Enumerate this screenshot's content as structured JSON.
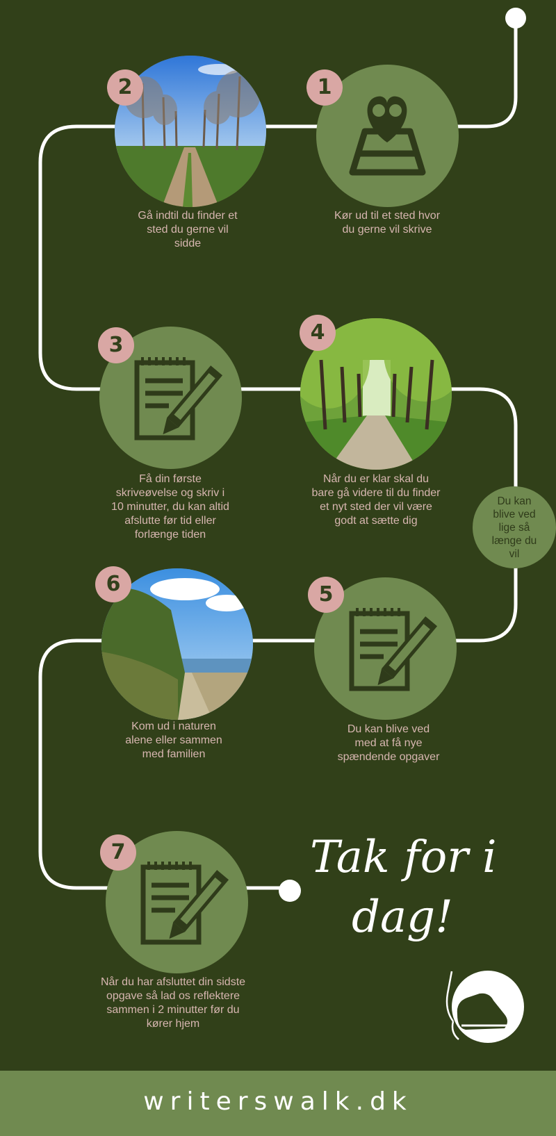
{
  "steps": [
    {
      "number": "1",
      "text": "Kør ud til et sted hvor du gerne vil skrive",
      "icon": "map-heart-icon"
    },
    {
      "number": "2",
      "text": "Gå indtil du finder et sted du gerne vil sidde",
      "image": "tree-lined-path-photo"
    },
    {
      "number": "3",
      "text": "Få din første skriveøvelse og skriv i 10 minutter, du kan altid afslutte før tid eller forlænge tiden",
      "icon": "notepad-pencil-icon"
    },
    {
      "number": "4",
      "text": "Når du er klar skal du bare gå videre til du finder et nyt sted der vil være godt at sætte dig",
      "image": "green-avenue-photo"
    },
    {
      "number": "5",
      "text": "Du kan blive ved med at få nye spændende opgaver",
      "icon": "notepad-pencil-icon"
    },
    {
      "number": "6",
      "text": "Kom ud i naturen alene eller sammen med familien",
      "image": "coastal-path-photo"
    },
    {
      "number": "7",
      "text": "Når du har afsluttet din sidste opgave så lad os reflektere sammen i 2 minutter før du kører hjem",
      "icon": "notepad-pencil-icon"
    }
  ],
  "side_note": "Du kan blive ved lige så længe du vil",
  "closing": {
    "line1": "Tak for i",
    "line2": "dag!"
  },
  "footer": {
    "site": "writerswalk.dk"
  },
  "colors": {
    "background": "#314019",
    "accent_green": "#708a50",
    "badge_pink": "#d9a7a4",
    "caption_text": "#d7b6b0",
    "path": "#ffffff"
  }
}
